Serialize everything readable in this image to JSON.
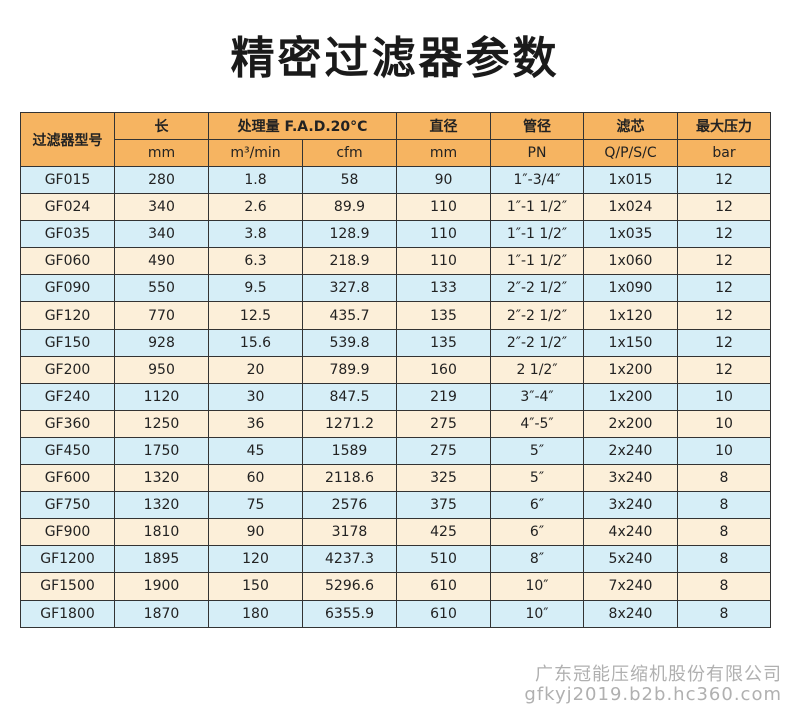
{
  "title": "精密过滤器参数",
  "headers": {
    "model": "过滤器型号",
    "length": "长",
    "fad": "处理量  F.A.D.20°C",
    "diameter": "直径",
    "pipe": "管径",
    "element": "滤芯",
    "pressure": "最大压力"
  },
  "units": {
    "length": "mm",
    "m3": "m³/min",
    "cfm": "cfm",
    "diameter": "mm",
    "pipe": "PN",
    "element": "Q/P/S/C",
    "pressure": "bar"
  },
  "rows": [
    [
      "GF015",
      "280",
      "1.8",
      "58",
      "90",
      "1″-3/4″",
      "1x015",
      "12"
    ],
    [
      "GF024",
      "340",
      "2.6",
      "89.9",
      "110",
      "1″-1 1/2″",
      "1x024",
      "12"
    ],
    [
      "GF035",
      "340",
      "3.8",
      "128.9",
      "110",
      "1″-1 1/2″",
      "1x035",
      "12"
    ],
    [
      "GF060",
      "490",
      "6.3",
      "218.9",
      "110",
      "1″-1 1/2″",
      "1x060",
      "12"
    ],
    [
      "GF090",
      "550",
      "9.5",
      "327.8",
      "133",
      "2″-2 1/2″",
      "1x090",
      "12"
    ],
    [
      "GF120",
      "770",
      "12.5",
      "435.7",
      "135",
      "2″-2 1/2″",
      "1x120",
      "12"
    ],
    [
      "GF150",
      "928",
      "15.6",
      "539.8",
      "135",
      "2″-2 1/2″",
      "1x150",
      "12"
    ],
    [
      "GF200",
      "950",
      "20",
      "789.9",
      "160",
      "2 1/2″",
      "1x200",
      "12"
    ],
    [
      "GF240",
      "1120",
      "30",
      "847.5",
      "219",
      "3″-4″",
      "1x200",
      "10"
    ],
    [
      "GF360",
      "1250",
      "36",
      "1271.2",
      "275",
      "4″-5″",
      "2x200",
      "10"
    ],
    [
      "GF450",
      "1750",
      "45",
      "1589",
      "275",
      "5″",
      "2x240",
      "10"
    ],
    [
      "GF600",
      "1320",
      "60",
      "2118.6",
      "325",
      "5″",
      "3x240",
      "8"
    ],
    [
      "GF750",
      "1320",
      "75",
      "2576",
      "375",
      "6″",
      "3x240",
      "8"
    ],
    [
      "GF900",
      "1810",
      "90",
      "3178",
      "425",
      "6″",
      "4x240",
      "8"
    ],
    [
      "GF1200",
      "1895",
      "120",
      "4237.3",
      "510",
      "8″",
      "5x240",
      "8"
    ],
    [
      "GF1500",
      "1900",
      "150",
      "5296.6",
      "610",
      "10″",
      "7x240",
      "8"
    ],
    [
      "GF1800",
      "1870",
      "180",
      "6355.9",
      "610",
      "10″",
      "8x240",
      "8"
    ]
  ],
  "footer": {
    "company": "广东冠能压缩机股份有限公司",
    "site": "gfkyj2019.b2b.hc360.com"
  },
  "colors": {
    "header_bg": "#f6b461",
    "row_blue": "#d6eef7",
    "row_cream": "#fcefd9"
  }
}
